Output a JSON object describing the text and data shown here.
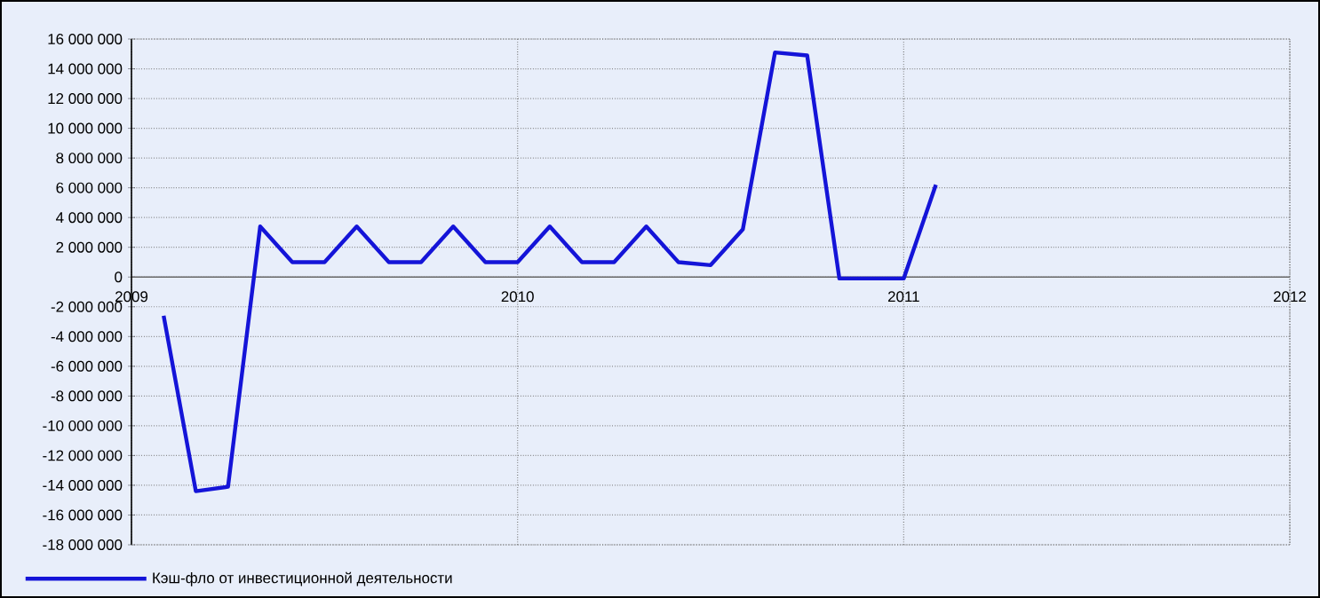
{
  "chart_data": {
    "type": "line",
    "x": [
      "2009-02",
      "2009-03",
      "2009-04",
      "2009-05",
      "2009-06",
      "2009-07",
      "2009-08",
      "2009-09",
      "2009-10",
      "2009-11",
      "2009-12",
      "2010-01",
      "2010-02",
      "2010-03",
      "2010-04",
      "2010-05",
      "2010-06",
      "2010-07",
      "2010-08",
      "2010-09",
      "2010-10",
      "2010-11",
      "2010-12",
      "2011-01",
      "2011-02"
    ],
    "series": [
      {
        "name": "Кэш-фло от инвестиционной деятельности",
        "color": "#1414d8",
        "values": [
          -2600000,
          -14400000,
          -14100000,
          3400000,
          1000000,
          1000000,
          3400000,
          1000000,
          1000000,
          3400000,
          1000000,
          1000000,
          3400000,
          1000000,
          1000000,
          3400000,
          1000000,
          800000,
          3200000,
          15100000,
          14900000,
          -100000,
          -100000,
          -100000,
          6200000
        ]
      }
    ],
    "xlim": [
      "2009",
      "2012"
    ],
    "xticks": [
      "2009",
      "2010",
      "2011",
      "2012"
    ],
    "ylim": [
      -18000000,
      16000000
    ],
    "yticks": [
      {
        "value": -18000000,
        "label": "-18 000 000"
      },
      {
        "value": -16000000,
        "label": "-16 000 000"
      },
      {
        "value": -14000000,
        "label": "-14 000 000"
      },
      {
        "value": -12000000,
        "label": "-12 000 000"
      },
      {
        "value": -10000000,
        "label": "-10 000 000"
      },
      {
        "value": -8000000,
        "label": "-8 000 000"
      },
      {
        "value": -6000000,
        "label": "-6 000 000"
      },
      {
        "value": -4000000,
        "label": "-4 000 000"
      },
      {
        "value": -2000000,
        "label": "-2 000 000"
      },
      0,
      {
        "value": 2000000,
        "label": "2 000 000"
      },
      {
        "value": 4000000,
        "label": "4 000 000"
      },
      {
        "value": 6000000,
        "label": "6 000 000"
      },
      {
        "value": 8000000,
        "label": "8 000 000"
      },
      {
        "value": 10000000,
        "label": "10 000 000"
      },
      {
        "value": 12000000,
        "label": "12 000 000"
      },
      {
        "value": 14000000,
        "label": "14 000 000"
      },
      {
        "value": 16000000,
        "label": "16 000 000"
      }
    ],
    "grid": true,
    "legend": "bottom left",
    "marker": "none",
    "line_style": "solid"
  }
}
